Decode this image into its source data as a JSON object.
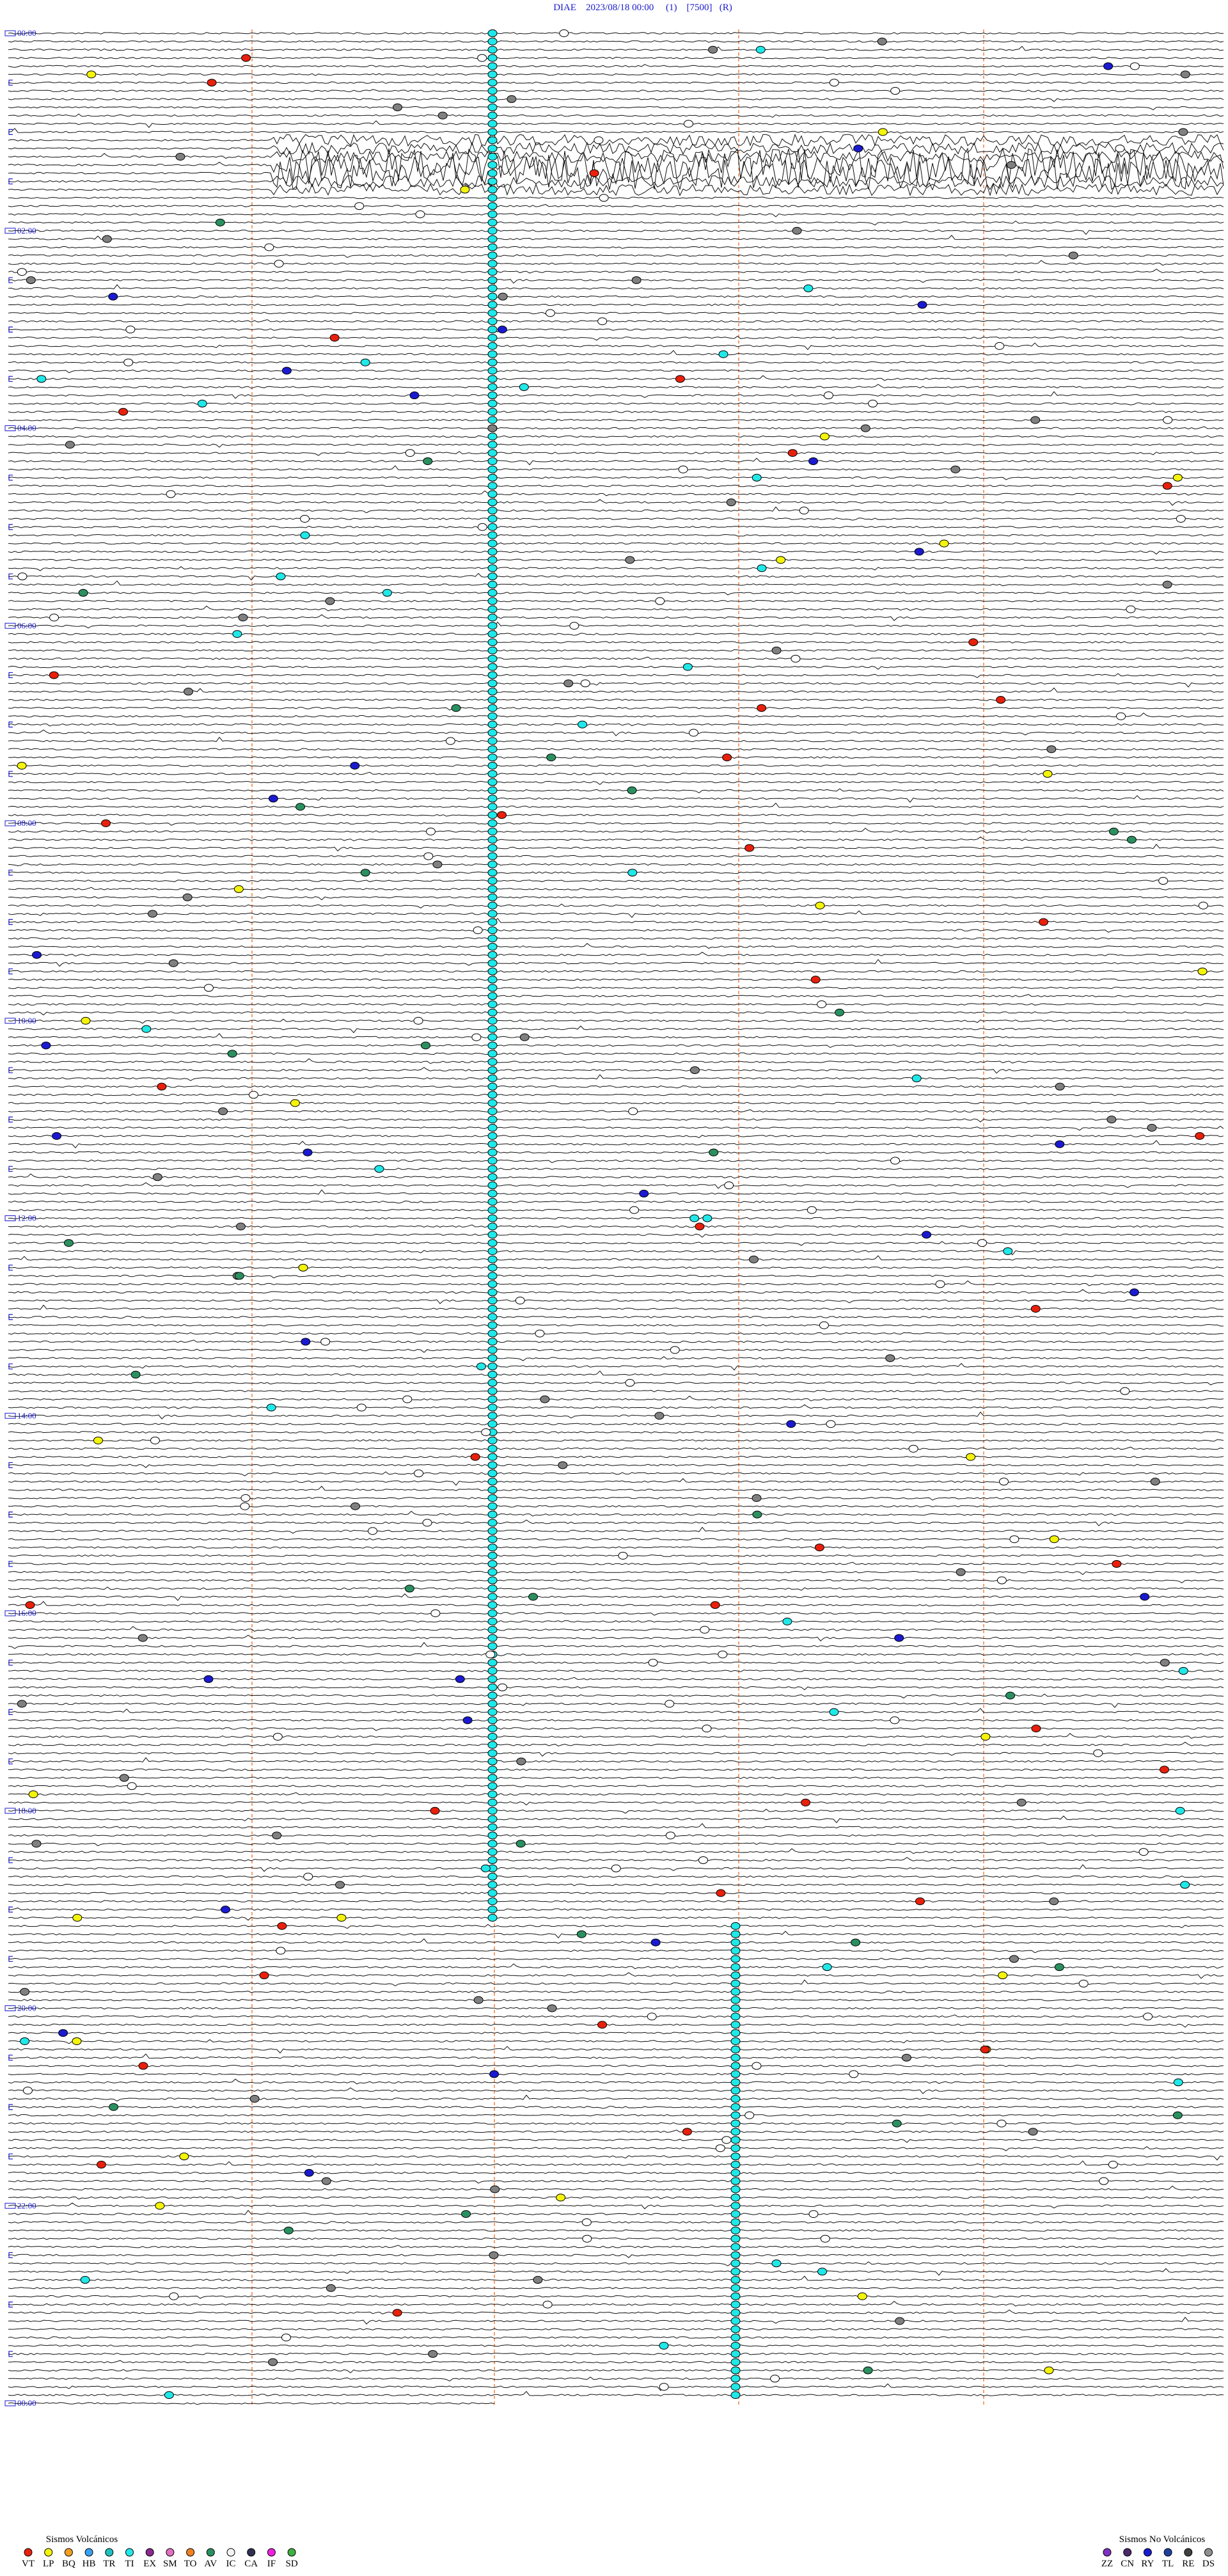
{
  "header": "DIAE    2023/08/18 00:00     (1)    [7500]   (R)",
  "time_labels": [
    "00:00",
    "02:00",
    "04:00",
    "06:00",
    "08:00",
    "10:00",
    "12:00",
    "14:00",
    "16:00",
    "18:00",
    "20:00",
    "22:00",
    "00:00"
  ],
  "legend": {
    "volcanic": {
      "title": "Sismos Volcánicos",
      "items": [
        {
          "code": "VT",
          "color": "#e8200c"
        },
        {
          "code": "LP",
          "color": "#f4f40a"
        },
        {
          "code": "BQ",
          "color": "#f4a020"
        },
        {
          "code": "HB",
          "color": "#3aa0f0"
        },
        {
          "code": "TR",
          "color": "#20c0c0"
        },
        {
          "code": "TI",
          "color": "#20e8e8"
        },
        {
          "code": "EX",
          "color": "#8a2890"
        },
        {
          "code": "SM",
          "color": "#e070c0"
        },
        {
          "code": "TO",
          "color": "#f08020"
        },
        {
          "code": "AV",
          "color": "#2a9060"
        },
        {
          "code": "IC",
          "color": "#f4f4f4"
        },
        {
          "code": "CA",
          "color": "#303050"
        },
        {
          "code": "IF",
          "color": "#f020e0"
        },
        {
          "code": "SD",
          "color": "#40b040"
        }
      ]
    },
    "non_volcanic": {
      "title": "Sismos No Volcánicos",
      "items": [
        {
          "code": "ZZ",
          "color": "#8030c0"
        },
        {
          "code": "CN",
          "color": "#4a2a6a"
        },
        {
          "code": "RY",
          "color": "#1a1ad0"
        },
        {
          "code": "TL",
          "color": "#2040a0"
        },
        {
          "code": "RE",
          "color": "#404040"
        },
        {
          "code": "DS",
          "color": "#909090"
        }
      ]
    }
  }
}
